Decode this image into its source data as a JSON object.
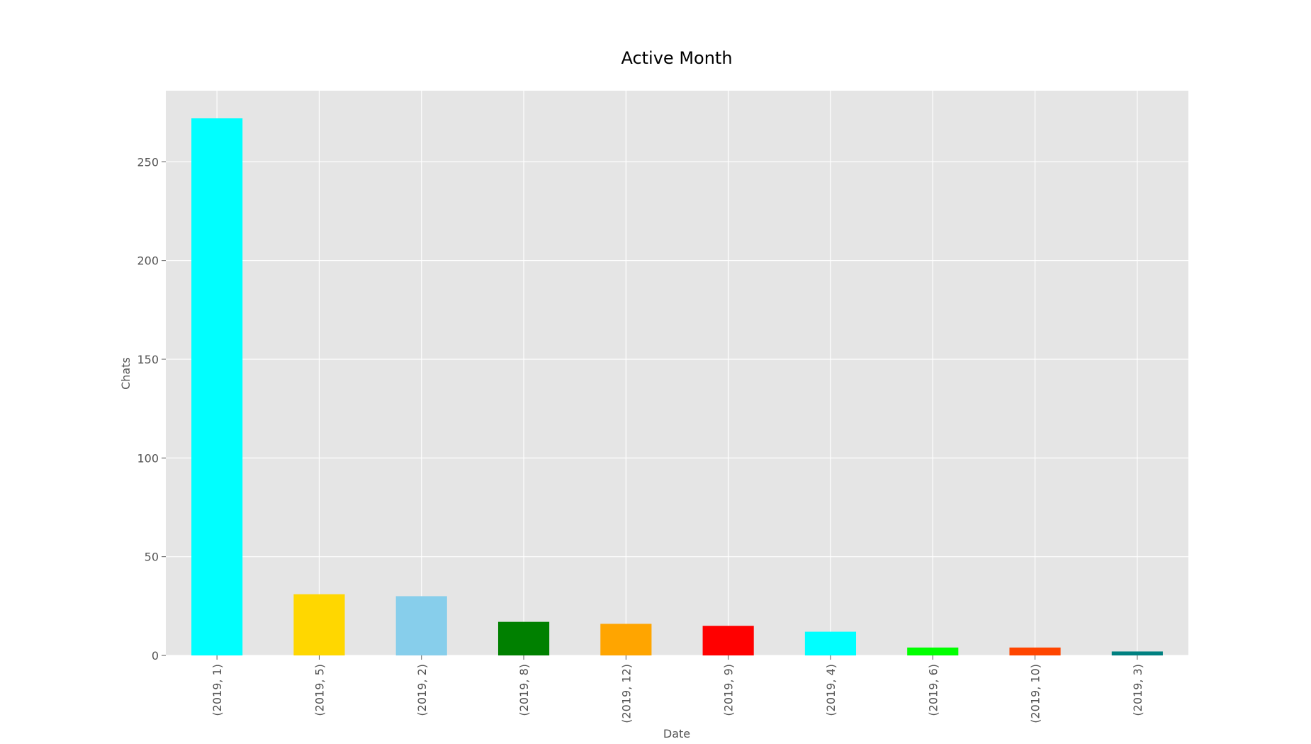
{
  "chart_data": {
    "type": "bar",
    "title": "Active Month",
    "xlabel": "Date",
    "ylabel": "Chats",
    "categories": [
      "(2019, 1)",
      "(2019, 5)",
      "(2019, 2)",
      "(2019, 8)",
      "(2019, 12)",
      "(2019, 9)",
      "(2019, 4)",
      "(2019, 6)",
      "(2019, 10)",
      "(2019, 3)"
    ],
    "values": [
      272,
      31,
      30,
      17,
      16,
      15,
      12,
      4,
      4,
      2
    ],
    "colors": [
      "#00ffff",
      "#ffd700",
      "#87ceeb",
      "#008000",
      "#ffa500",
      "#ff0000",
      "#00ffff",
      "#00ff00",
      "#ff4500",
      "#008080"
    ],
    "ylim": [
      0,
      286
    ],
    "yticks": [
      0,
      50,
      100,
      150,
      200,
      250
    ],
    "grid": true,
    "background": "#e5e5e5",
    "grid_color": "#ffffff"
  }
}
